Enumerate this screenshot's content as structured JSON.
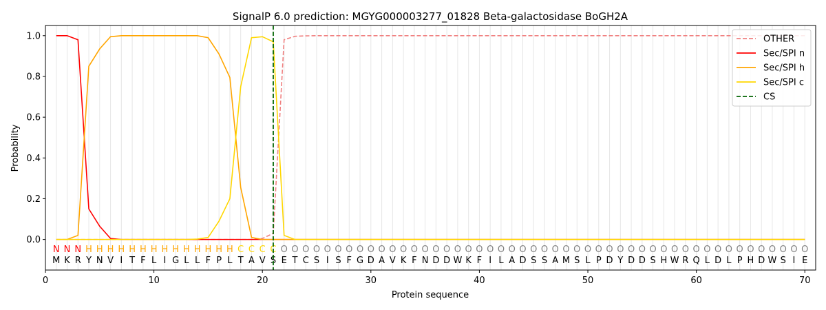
{
  "chart_data": {
    "type": "line",
    "title": "SignalP 6.0 prediction: MGYG000003277_01828 Beta-galactosidase BoGH2A",
    "xlabel": "Protein sequence",
    "ylabel": "Probability",
    "xlim": [
      0,
      71
    ],
    "ylim": [
      -0.15,
      1.05
    ],
    "xticks": [
      0,
      10,
      20,
      30,
      40,
      50,
      60,
      70
    ],
    "yticks": [
      0.0,
      0.2,
      0.4,
      0.6,
      0.8,
      1.0
    ],
    "grid": "vertical lines at each residue",
    "legend_position": "top-right",
    "sequence": [
      "M",
      "K",
      "R",
      "Y",
      "N",
      "V",
      "I",
      "T",
      "F",
      "L",
      "I",
      "G",
      "L",
      "L",
      "F",
      "P",
      "L",
      "T",
      "A",
      "V",
      "S",
      "E",
      "T",
      "C",
      "S",
      "I",
      "S",
      "F",
      "G",
      "D",
      "A",
      "V",
      "K",
      "F",
      "N",
      "D",
      "D",
      "W",
      "K",
      "F",
      "I",
      "L",
      "A",
      "D",
      "S",
      "S",
      "A",
      "M",
      "S",
      "L",
      "P",
      "D",
      "Y",
      "D",
      "D",
      "S",
      "H",
      "W",
      "R",
      "Q",
      "L",
      "D",
      "L",
      "P",
      "H",
      "D",
      "W",
      "S",
      "I",
      "E"
    ],
    "region_labels": [
      "N",
      "N",
      "N",
      "H",
      "H",
      "H",
      "H",
      "H",
      "H",
      "H",
      "H",
      "H",
      "H",
      "H",
      "H",
      "H",
      "H",
      "C",
      "C",
      "C",
      "C",
      "O",
      "O",
      "O",
      "O",
      "O",
      "O",
      "O",
      "O",
      "O",
      "O",
      "O",
      "O",
      "O",
      "O",
      "O",
      "O",
      "O",
      "O",
      "O",
      "O",
      "O",
      "O",
      "O",
      "O",
      "O",
      "O",
      "O",
      "O",
      "O",
      "O",
      "O",
      "O",
      "O",
      "O",
      "O",
      "O",
      "O",
      "O",
      "O",
      "O",
      "O",
      "O",
      "O",
      "O",
      "O",
      "O",
      "O",
      "O",
      "O"
    ],
    "region_colors": {
      "N": "#ff0000",
      "H": "#ffa500",
      "C": "#ffd700",
      "O": "#808080"
    },
    "cleavage_site": 21,
    "series": [
      {
        "name": "OTHER",
        "color": "#f08080",
        "dash": true,
        "values": [
          0,
          0,
          0,
          0,
          0,
          0,
          0,
          0,
          0,
          0,
          0,
          0,
          0,
          0,
          0,
          0,
          0,
          0,
          0,
          0.005,
          0.03,
          0.98,
          0.997,
          0.999,
          1,
          1,
          1,
          1,
          1,
          1,
          1,
          1,
          1,
          1,
          1,
          1,
          1,
          1,
          1,
          1,
          1,
          1,
          1,
          1,
          1,
          1,
          1,
          1,
          1,
          1,
          1,
          1,
          1,
          1,
          1,
          1,
          1,
          1,
          1,
          1,
          1,
          1,
          1,
          1,
          1,
          1,
          1,
          1,
          1,
          1
        ]
      },
      {
        "name": "Sec/SPI n",
        "color": "#ff0000",
        "dash": false,
        "values": [
          1,
          1,
          0.98,
          0.15,
          0.065,
          0.005,
          0,
          0,
          0,
          0,
          0,
          0,
          0,
          0,
          0,
          0,
          0,
          0,
          0,
          0,
          0,
          0,
          0,
          0,
          0,
          0,
          0,
          0,
          0,
          0,
          0,
          0,
          0,
          0,
          0,
          0,
          0,
          0,
          0,
          0,
          0,
          0,
          0,
          0,
          0,
          0,
          0,
          0,
          0,
          0,
          0,
          0,
          0,
          0,
          0,
          0,
          0,
          0,
          0,
          0,
          0,
          0,
          0,
          0,
          0,
          0,
          0,
          0,
          0,
          0
        ]
      },
      {
        "name": "Sec/SPI h",
        "color": "#ffa500",
        "dash": false,
        "values": [
          0,
          0,
          0.02,
          0.85,
          0.935,
          0.995,
          1,
          1,
          1,
          1,
          1,
          1,
          1,
          1,
          0.99,
          0.91,
          0.795,
          0.255,
          0.01,
          0,
          0,
          0,
          0,
          0,
          0,
          0,
          0,
          0,
          0,
          0,
          0,
          0,
          0,
          0,
          0,
          0,
          0,
          0,
          0,
          0,
          0,
          0,
          0,
          0,
          0,
          0,
          0,
          0,
          0,
          0,
          0,
          0,
          0,
          0,
          0,
          0,
          0,
          0,
          0,
          0,
          0,
          0,
          0,
          0,
          0,
          0,
          0,
          0,
          0,
          0
        ]
      },
      {
        "name": "Sec/SPI c",
        "color": "#ffd700",
        "dash": false,
        "values": [
          0,
          0,
          0,
          0,
          0,
          0,
          0,
          0,
          0,
          0,
          0,
          0,
          0,
          0.002,
          0.01,
          0.09,
          0.2,
          0.75,
          0.99,
          0.995,
          0.97,
          0.02,
          0,
          0,
          0,
          0,
          0,
          0,
          0,
          0,
          0,
          0,
          0,
          0,
          0,
          0,
          0,
          0,
          0,
          0,
          0,
          0,
          0,
          0,
          0,
          0,
          0,
          0,
          0,
          0,
          0,
          0,
          0,
          0,
          0,
          0,
          0,
          0,
          0,
          0,
          0,
          0,
          0,
          0,
          0,
          0,
          0,
          0,
          0,
          0
        ]
      }
    ],
    "legend": [
      {
        "name": "OTHER",
        "color": "#f08080",
        "dash": true
      },
      {
        "name": "Sec/SPI n",
        "color": "#ff0000",
        "dash": false
      },
      {
        "name": "Sec/SPI h",
        "color": "#ffa500",
        "dash": false
      },
      {
        "name": "Sec/SPI c",
        "color": "#ffd700",
        "dash": false
      },
      {
        "name": "CS",
        "color": "#006400",
        "dash": true
      }
    ]
  }
}
